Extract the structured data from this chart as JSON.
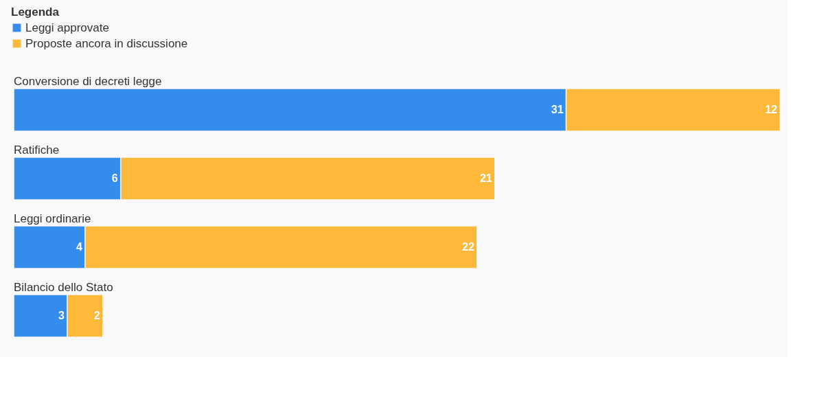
{
  "chart_data": {
    "type": "bar",
    "orientation": "horizontal",
    "stacked": true,
    "legend_title": "Legenda",
    "legend": "top left",
    "data_labels": true,
    "categories": [
      "Conversione di decreti legge",
      "Ratifiche",
      "Leggi ordinarie",
      "Bilancio dello Stato"
    ],
    "series": [
      {
        "name": "Leggi approvate",
        "color": "#348ded",
        "values": [
          31,
          6,
          4,
          3
        ]
      },
      {
        "name": "Proposte ancora in discussione",
        "color": "#ffb93a",
        "values": [
          12,
          21,
          22,
          2
        ]
      }
    ]
  }
}
